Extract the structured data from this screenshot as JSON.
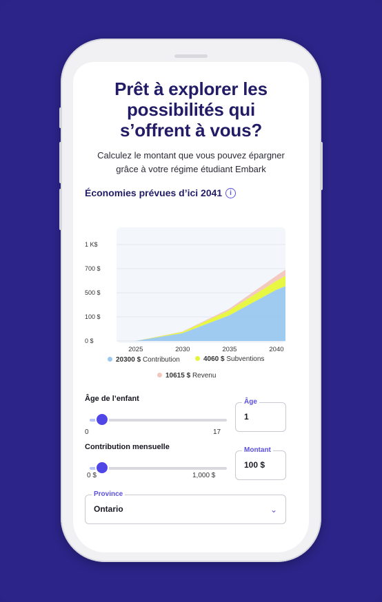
{
  "hero": {
    "title_line1": "Prêt à explorer les",
    "title_line2": "possibilités qui",
    "title_line3": "s’offrent à vous?",
    "subtitle_line1": "Calculez le montant que vous pouvez épargner",
    "subtitle_line2": "grâce à votre régime étudiant Embark"
  },
  "section": {
    "title": "Économies prévues d’ici 2041",
    "info_glyph": "i"
  },
  "chart_data": {
    "type": "area",
    "x": [
      2023,
      2025,
      2030,
      2035,
      2040,
      2041
    ],
    "xticks": [
      "2025",
      "2030",
      "2035",
      "2040"
    ],
    "yticks": [
      "0 $",
      "100 $",
      "500 $",
      "700 $",
      "1 K$"
    ],
    "series": [
      {
        "name": "Contribution",
        "color": "#9ac8ef",
        "values": [
          0,
          0,
          60,
          200,
          400,
          430
        ]
      },
      {
        "name": "Subventions",
        "color": "#e7f53a",
        "values": [
          0,
          0,
          10,
          40,
          70,
          80
        ]
      },
      {
        "name": "Revenu",
        "color": "#f3c6bd",
        "values": [
          0,
          0,
          3,
          12,
          40,
          50
        ]
      }
    ],
    "legend": [
      {
        "amount": "20300 $",
        "label": "Contribution",
        "color": "#9ac8ef"
      },
      {
        "amount": "4060 $",
        "label": "Subventions",
        "color": "#e7f53a"
      },
      {
        "amount": "10615 $",
        "label": "Revenu",
        "color": "#f3c6bd"
      }
    ],
    "ylim": [
      0,
      1000
    ]
  },
  "age": {
    "label": "Âge de l’enfant",
    "min": "0",
    "max": "17",
    "value_fraction": 0.06,
    "field_legend": "Âge",
    "field_value": "1"
  },
  "contribution": {
    "label": "Contribution mensuelle",
    "min": "0 $",
    "max": "1,000 $",
    "value_fraction": 0.06,
    "field_legend": "Montant",
    "field_value": "100 $"
  },
  "province": {
    "legend": "Province",
    "value": "Ontario",
    "chevron": "⌄"
  }
}
